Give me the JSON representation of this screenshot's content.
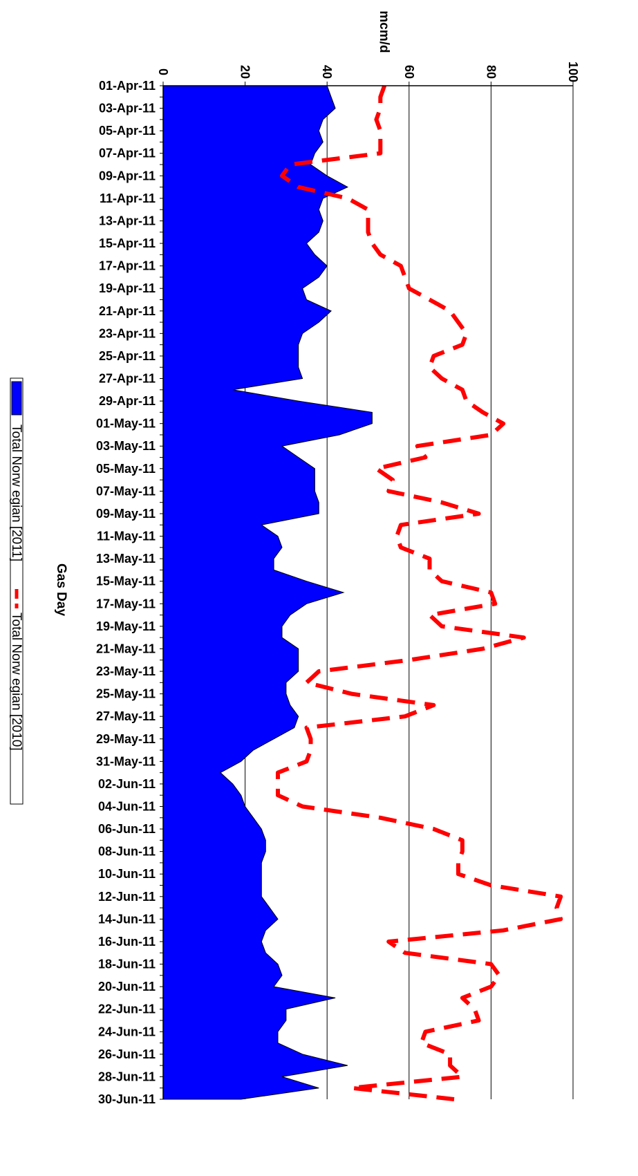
{
  "chart_data": {
    "type": "area",
    "orientation": "rotated-90-clockwise",
    "categories": [
      "01-Apr-11",
      "02-Apr-11",
      "03-Apr-11",
      "04-Apr-11",
      "05-Apr-11",
      "06-Apr-11",
      "07-Apr-11",
      "08-Apr-11",
      "09-Apr-11",
      "10-Apr-11",
      "11-Apr-11",
      "12-Apr-11",
      "13-Apr-11",
      "14-Apr-11",
      "15-Apr-11",
      "16-Apr-11",
      "17-Apr-11",
      "18-Apr-11",
      "19-Apr-11",
      "20-Apr-11",
      "21-Apr-11",
      "22-Apr-11",
      "23-Apr-11",
      "24-Apr-11",
      "25-Apr-11",
      "26-Apr-11",
      "27-Apr-11",
      "28-Apr-11",
      "29-Apr-11",
      "30-Apr-11",
      "01-May-11",
      "02-May-11",
      "03-May-11",
      "04-May-11",
      "05-May-11",
      "06-May-11",
      "07-May-11",
      "08-May-11",
      "09-May-11",
      "10-May-11",
      "11-May-11",
      "12-May-11",
      "13-May-11",
      "14-May-11",
      "15-May-11",
      "16-May-11",
      "17-May-11",
      "18-May-11",
      "19-May-11",
      "20-May-11",
      "21-May-11",
      "22-May-11",
      "23-May-11",
      "24-May-11",
      "25-May-11",
      "26-May-11",
      "27-May-11",
      "28-May-11",
      "29-May-11",
      "30-May-11",
      "31-May-11",
      "01-Jun-11",
      "02-Jun-11",
      "03-Jun-11",
      "04-Jun-11",
      "05-Jun-11",
      "06-Jun-11",
      "07-Jun-11",
      "08-Jun-11",
      "09-Jun-11",
      "10-Jun-11",
      "11-Jun-11",
      "12-Jun-11",
      "13-Jun-11",
      "14-Jun-11",
      "15-Jun-11",
      "16-Jun-11",
      "17-Jun-11",
      "18-Jun-11",
      "19-Jun-11",
      "20-Jun-11",
      "21-Jun-11",
      "22-Jun-11",
      "23-Jun-11",
      "24-Jun-11",
      "25-Jun-11",
      "26-Jun-11",
      "27-Jun-11",
      "28-Jun-11",
      "29-Jun-11",
      "30-Jun-11"
    ],
    "tick_labels": [
      "01-Apr-11",
      "03-Apr-11",
      "05-Apr-11",
      "07-Apr-11",
      "09-Apr-11",
      "11-Apr-11",
      "13-Apr-11",
      "15-Apr-11",
      "17-Apr-11",
      "19-Apr-11",
      "21-Apr-11",
      "23-Apr-11",
      "25-Apr-11",
      "27-Apr-11",
      "29-Apr-11",
      "01-May-11",
      "03-May-11",
      "05-May-11",
      "07-May-11",
      "09-May-11",
      "11-May-11",
      "13-May-11",
      "15-May-11",
      "17-May-11",
      "19-May-11",
      "21-May-11",
      "23-May-11",
      "25-May-11",
      "27-May-11",
      "29-May-11",
      "31-May-11",
      "02-Jun-11",
      "04-Jun-11",
      "06-Jun-11",
      "08-Jun-11",
      "10-Jun-11",
      "12-Jun-11",
      "14-Jun-11",
      "16-Jun-11",
      "18-Jun-11",
      "20-Jun-11",
      "22-Jun-11",
      "24-Jun-11",
      "26-Jun-11",
      "28-Jun-11",
      "30-Jun-11"
    ],
    "series": [
      {
        "name": "Total Norw egian [2011]",
        "kind": "area",
        "color": "#0000ff",
        "values": [
          40,
          41,
          42,
          39,
          38,
          39,
          37,
          36,
          40,
          45,
          39,
          38,
          39,
          38,
          35,
          37,
          40,
          38,
          34,
          35,
          41,
          38,
          34,
          33,
          33,
          33,
          34,
          17,
          33,
          51,
          51,
          43,
          29,
          33,
          37,
          37,
          37,
          38,
          38,
          24,
          28,
          29,
          27,
          27,
          35,
          44,
          35,
          31,
          29,
          29,
          33,
          33,
          33,
          30,
          30,
          31,
          33,
          32,
          27,
          22,
          19,
          14,
          17,
          19,
          20,
          22,
          24,
          25,
          25,
          24,
          24,
          24,
          24,
          26,
          28,
          25,
          24,
          25,
          28,
          29,
          27,
          42,
          30,
          30,
          28,
          28,
          34,
          45,
          29,
          38,
          19
        ]
      },
      {
        "name": "Total Norw egian [2010]",
        "kind": "dashed-line",
        "color": "#ff0000",
        "values": [
          54,
          53,
          53,
          52,
          53,
          53,
          53,
          31,
          29,
          33,
          45,
          50,
          50,
          50,
          51,
          53,
          58,
          59,
          60,
          65,
          70,
          72,
          74,
          73,
          66,
          65,
          68,
          73,
          74,
          78,
          83,
          80,
          62,
          64,
          52,
          56,
          55,
          68,
          77,
          58,
          57,
          58,
          65,
          65,
          68,
          80,
          81,
          65,
          68,
          88,
          78,
          60,
          38,
          35,
          46,
          66,
          59,
          35,
          36,
          36,
          35,
          28,
          28,
          28,
          34,
          53,
          66,
          73,
          73,
          72,
          72,
          80,
          97,
          96,
          97,
          83,
          55,
          59,
          80,
          82,
          80,
          73,
          76,
          77,
          64,
          63,
          70,
          70,
          73,
          46,
          71
        ]
      }
    ],
    "xlabel": "Gas Day",
    "ylabel": "mcm/d",
    "ylim": [
      0,
      100
    ],
    "yticks": [
      0,
      20,
      40,
      60,
      80,
      100
    ],
    "grid": "major gridlines on value axis",
    "legend_position": "left"
  }
}
